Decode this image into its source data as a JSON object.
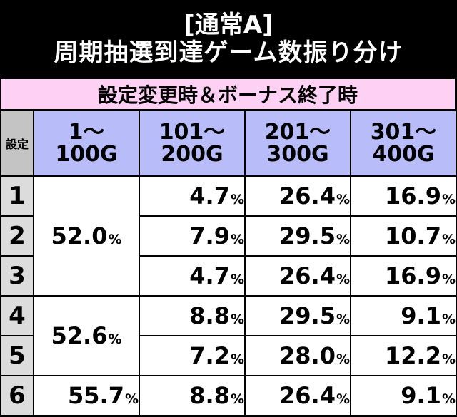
{
  "header": {
    "line1": "[通常A]",
    "line2": "周期抽選到達ゲーム数振り分け"
  },
  "subheader": "設定変更時＆ボーナス終了時",
  "columns": {
    "setting": "設定",
    "c1": [
      "1～",
      "100G"
    ],
    "c2": [
      "101～",
      "200G"
    ],
    "c3": [
      "201～",
      "300G"
    ],
    "c4": [
      "301～",
      "400G"
    ]
  },
  "percent_sign": "%",
  "rows": [
    {
      "setting": "1",
      "c2": "4.7",
      "c3": "26.4",
      "c4": "16.9"
    },
    {
      "setting": "2",
      "c2": "7.9",
      "c3": "29.5",
      "c4": "10.7"
    },
    {
      "setting": "3",
      "c2": "4.7",
      "c3": "26.4",
      "c4": "16.9"
    },
    {
      "setting": "4",
      "c2": "8.8",
      "c3": "29.5",
      "c4": "9.1"
    },
    {
      "setting": "5",
      "c2": "7.2",
      "c3": "28.0",
      "c4": "12.2"
    },
    {
      "setting": "6",
      "c2": "8.8",
      "c3": "26.4",
      "c4": "9.1"
    }
  ],
  "merged_c1": {
    "group_1_3": "52.0",
    "group_4_5": "52.6",
    "row_6": "55.7"
  }
}
